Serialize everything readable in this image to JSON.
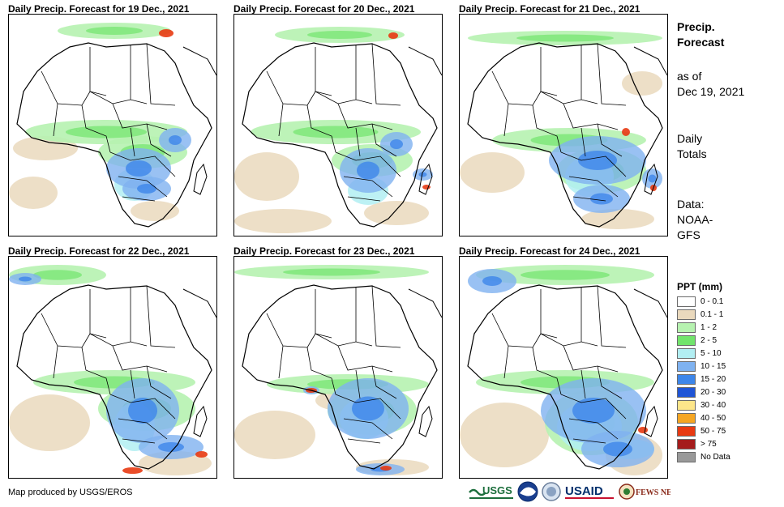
{
  "panels": [
    {
      "title": "Daily Precip. Forecast for 19 Dec., 2021"
    },
    {
      "title": "Daily Precip. Forecast for 20 Dec., 2021"
    },
    {
      "title": "Daily Precip. Forecast for 21 Dec., 2021"
    },
    {
      "title": "Daily Precip. Forecast for 22 Dec., 2021"
    },
    {
      "title": "Daily Precip. Forecast for 23 Dec., 2021"
    },
    {
      "title": "Daily Precip. Forecast for 24 Dec., 2021"
    }
  ],
  "sidebar": {
    "title_line1": "Precip.",
    "title_line2": "Forecast",
    "asof_line1": "as of",
    "asof_line2": "Dec 19, 2021",
    "totals_line1": "Daily",
    "totals_line2": "Totals",
    "source_line1": "Data:",
    "source_line2": "NOAA-",
    "source_line3": "GFS"
  },
  "legend": {
    "title": "PPT (mm)",
    "items": [
      {
        "label": "0 - 0.1",
        "color": "#ffffff"
      },
      {
        "label": "0.1 - 1",
        "color": "#ead9bd"
      },
      {
        "label": "1 - 2",
        "color": "#b6f2b0"
      },
      {
        "label": "2 - 5",
        "color": "#72e46c"
      },
      {
        "label": "5 - 10",
        "color": "#b2eef2"
      },
      {
        "label": "10 - 15",
        "color": "#7fb2f0"
      },
      {
        "label": "15 - 20",
        "color": "#3d86ea"
      },
      {
        "label": "20 - 30",
        "color": "#1f55d6"
      },
      {
        "label": "30 - 40",
        "color": "#fde68a"
      },
      {
        "label": "40 - 50",
        "color": "#f5a623"
      },
      {
        "label": "50 - 75",
        "color": "#e83a12"
      },
      {
        "label": "> 75",
        "color": "#a51c1c"
      },
      {
        "label": "No Data",
        "color": "#999999"
      }
    ]
  },
  "credit": "Map produced by USGS/EROS",
  "logos": {
    "usgs": "USGS",
    "usaid": "USAID",
    "fewsnet": "FEWS NET",
    "usgs_color": "#1c6e3c",
    "usaid_color": "#002f6c",
    "fewsnet_color": "#8a2a1a"
  }
}
